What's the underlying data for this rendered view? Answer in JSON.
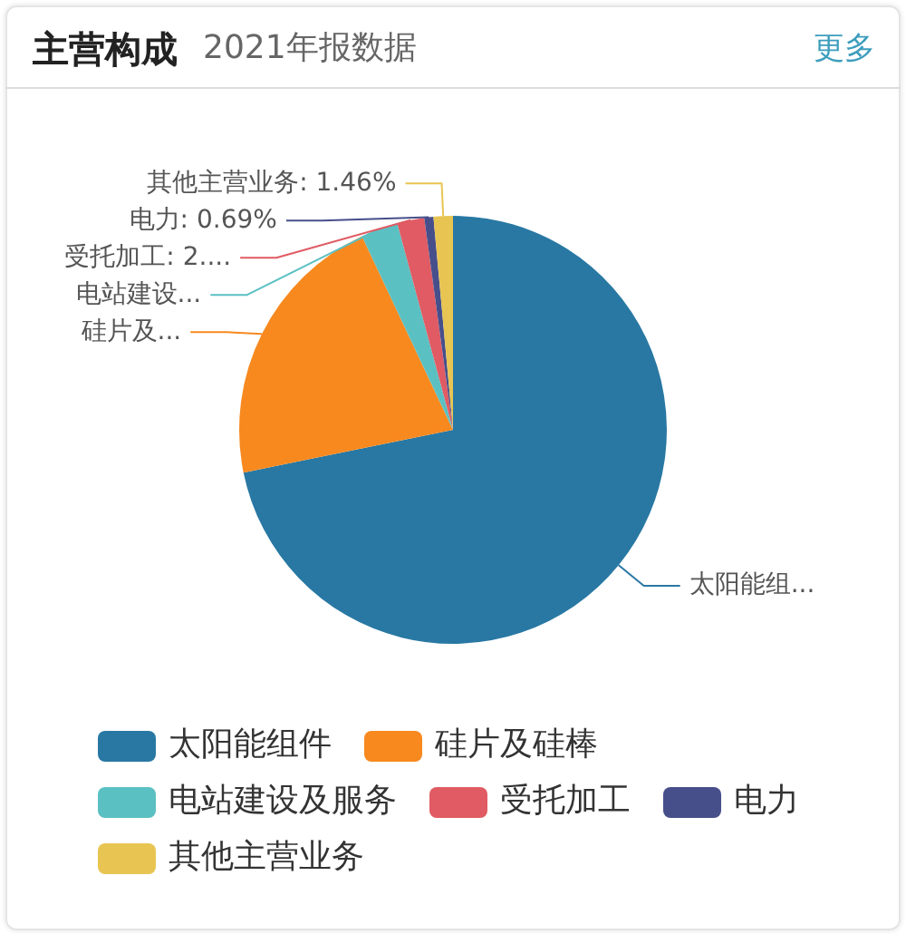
{
  "chart_data": {
    "type": "pie",
    "title": "主营构成",
    "subtitle": "2021年报数据",
    "annotations": [
      "更多"
    ],
    "categories": [
      "太阳能组件",
      "硅片及硅棒",
      "电站建设及服务",
      "受托加工",
      "电力",
      "其他主营业务"
    ],
    "values": [
      71.8,
      21.2,
      2.8,
      2.05,
      0.69,
      1.46
    ],
    "colors": [
      "#2878a3",
      "#f7891f",
      "#5bc0c2",
      "#e05b63",
      "#474f8b",
      "#e8c552"
    ],
    "value_labels": [
      "太阳能组...",
      "硅片及...",
      "电站建设...",
      "受托加工: 2....",
      "电力: 0.69%",
      "其他主营业务: 1.46%"
    ],
    "legend": "bottom"
  }
}
